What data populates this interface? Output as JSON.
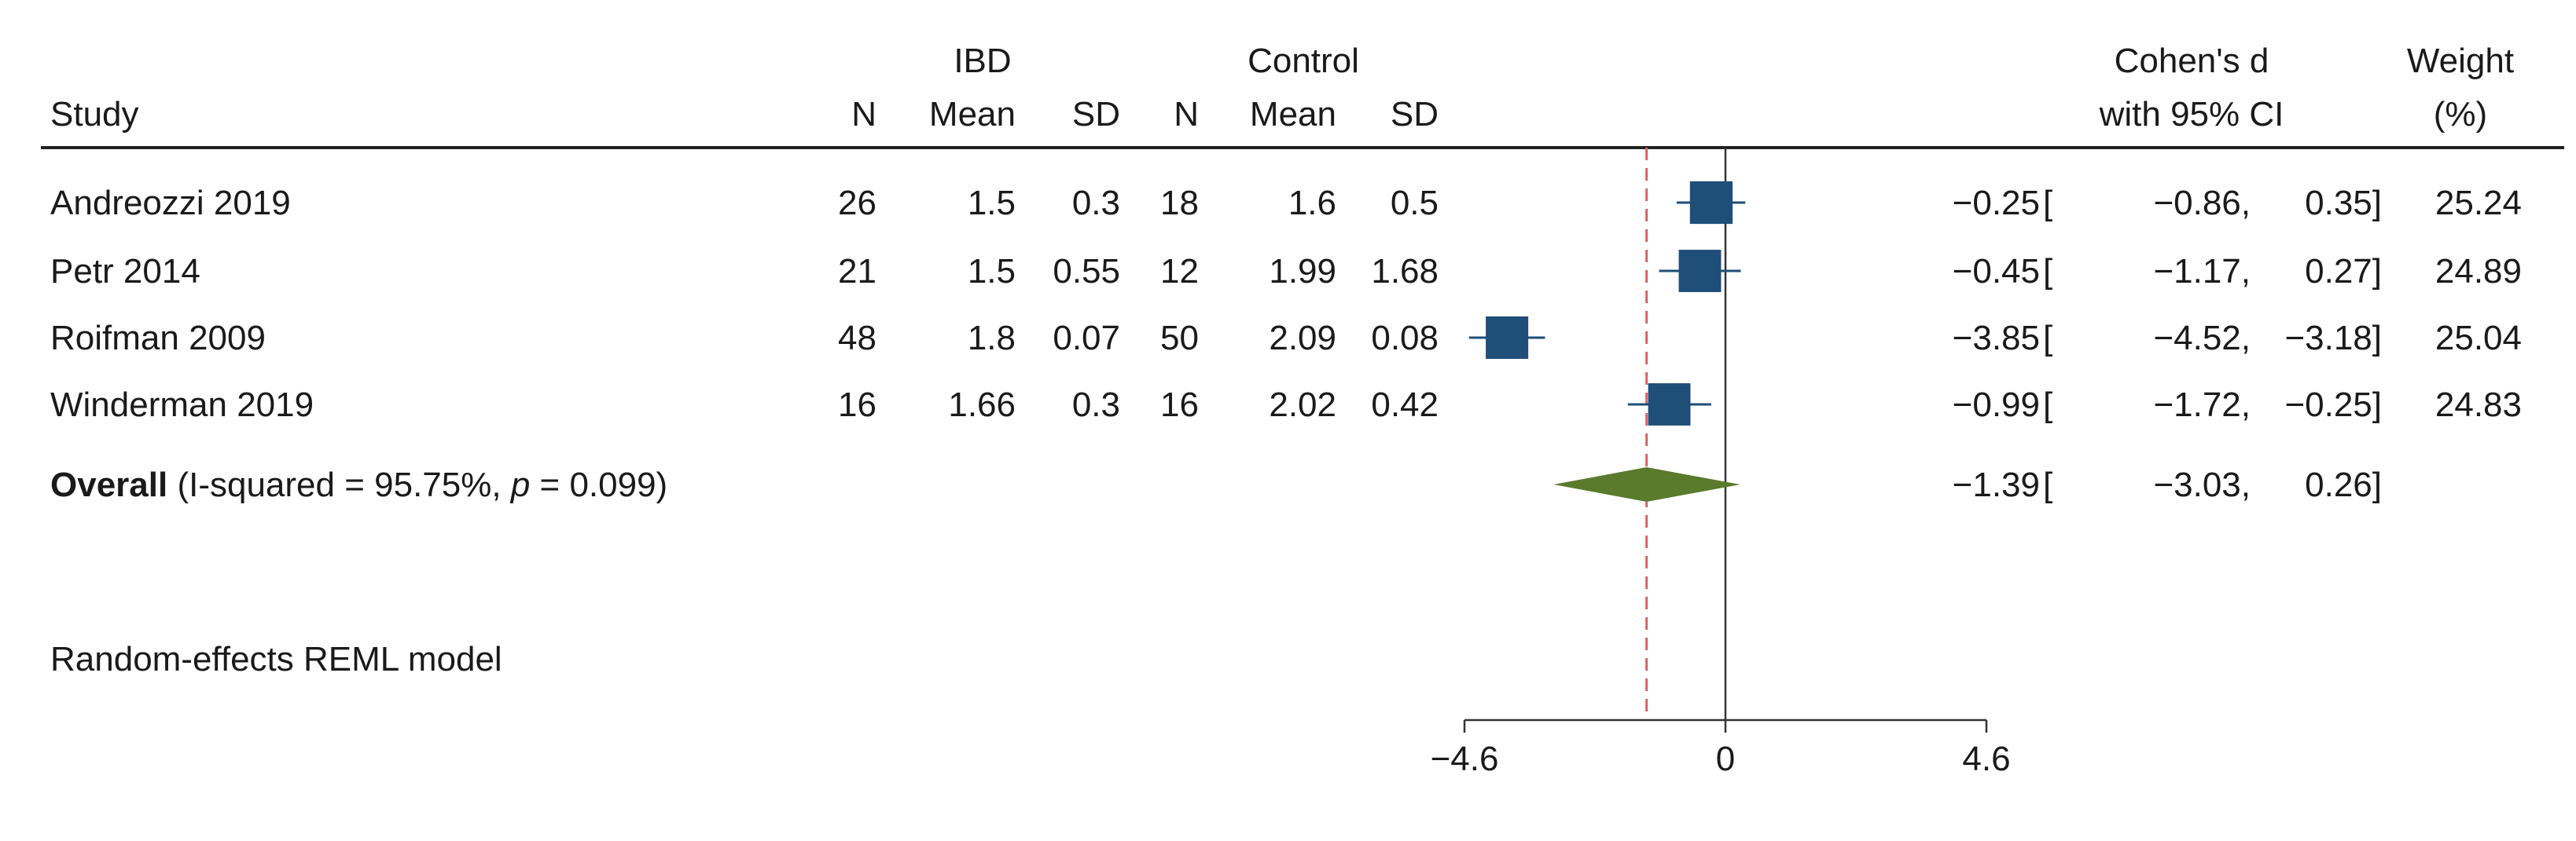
{
  "header": {
    "study": "Study",
    "group_ibd": "IBD",
    "group_control": "Control",
    "col_n": "N",
    "col_mean": "Mean",
    "col_sd": "SD",
    "effect_line1": "Cohen's d",
    "effect_line2": "with 95% CI",
    "weight_line1": "Weight",
    "weight_line2": "(%)"
  },
  "chart_data": {
    "type": "forest",
    "xlim": [
      -4.6,
      4.6
    ],
    "x_ticks": [
      {
        "value": -4.6,
        "label": "−4.6"
      },
      {
        "value": 0,
        "label": "0"
      },
      {
        "value": 4.6,
        "label": "4.6"
      }
    ],
    "studies": [
      {
        "name": "Andreozzi 2019",
        "n1": "26",
        "mean1": "1.5",
        "sd1": "0.3",
        "n2": "18",
        "mean2": "1.6",
        "sd2": "0.5",
        "d": -0.25,
        "lo": -0.86,
        "hi": 0.35,
        "d_label": "−0.25",
        "lo_label": "−0.86,",
        "hi_label": "0.35]",
        "weight": 25.24,
        "weight_label": "25.24"
      },
      {
        "name": "Petr 2014",
        "n1": "21",
        "mean1": "1.5",
        "sd1": "0.55",
        "n2": "12",
        "mean2": "1.99",
        "sd2": "1.68",
        "d": -0.45,
        "lo": -1.17,
        "hi": 0.27,
        "d_label": "−0.45",
        "lo_label": "−1.17,",
        "hi_label": "0.27]",
        "weight": 24.89,
        "weight_label": "24.89"
      },
      {
        "name": "Roifman 2009",
        "n1": "48",
        "mean1": "1.8",
        "sd1": "0.07",
        "n2": "50",
        "mean2": "2.09",
        "sd2": "0.08",
        "d": -3.85,
        "lo": -4.52,
        "hi": -3.18,
        "d_label": "−3.85",
        "lo_label": "−4.52,",
        "hi_label": "−3.18]",
        "weight": 25.04,
        "weight_label": "25.04"
      },
      {
        "name": "Winderman 2019",
        "n1": "16",
        "mean1": "1.66",
        "sd1": "0.3",
        "n2": "16",
        "mean2": "2.02",
        "sd2": "0.42",
        "d": -0.99,
        "lo": -1.72,
        "hi": -0.25,
        "d_label": "−0.99",
        "lo_label": "−1.72,",
        "hi_label": "−0.25]",
        "weight": 24.83,
        "weight_label": "24.83"
      }
    ],
    "overall": {
      "label_bold": "Overall",
      "label_rest1": " (I-squared = 95.75%, ",
      "label_p": "p",
      "label_rest2": " = 0.099)",
      "d": -1.39,
      "lo": -3.03,
      "hi": 0.26,
      "d_label": "−1.39",
      "lo_label": "−3.03,",
      "hi_label": "0.26]"
    },
    "open_bracket": "[",
    "model_note": "Random-effects REML model",
    "colors": {
      "box": "#1f4e79",
      "diamond": "#5a7a2c",
      "overall_line": "#e06060",
      "axis": "#333333"
    }
  }
}
